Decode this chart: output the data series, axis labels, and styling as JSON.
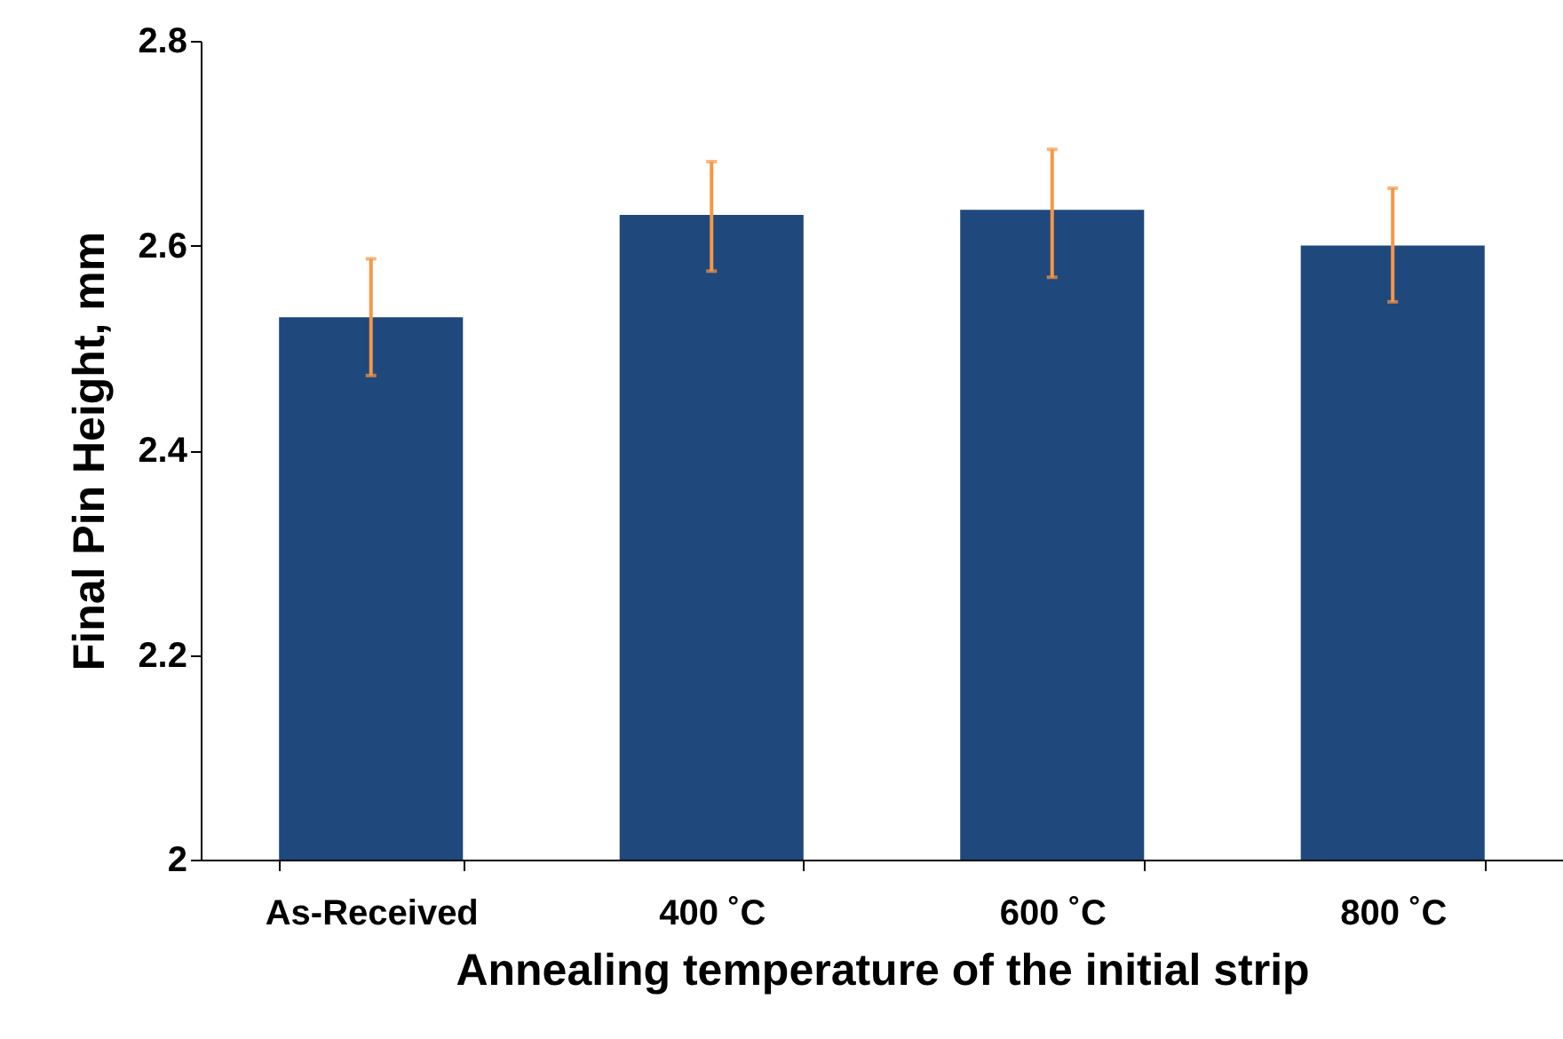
{
  "chart_data": {
    "type": "bar",
    "xlabel": "Annealing temperature of the initial strip",
    "ylabel": "Final Pin Height, mm",
    "categories": [
      "As-Received",
      "400 ˚C",
      "600 ˚C",
      "800 ˚C"
    ],
    "series": [
      {
        "color": "#1f497d",
        "values": [
          2.53,
          2.63,
          2.635,
          2.6
        ],
        "errors": [
          [
            2.473,
            2.587
          ],
          [
            2.575,
            2.682
          ],
          [
            2.569,
            2.694
          ],
          [
            2.545,
            2.656
          ]
        ]
      }
    ],
    "ylim": [
      2,
      2.8
    ],
    "yticks": [
      2,
      2.2,
      2.4,
      2.6,
      2.8
    ],
    "grid": false,
    "legend": false
  }
}
